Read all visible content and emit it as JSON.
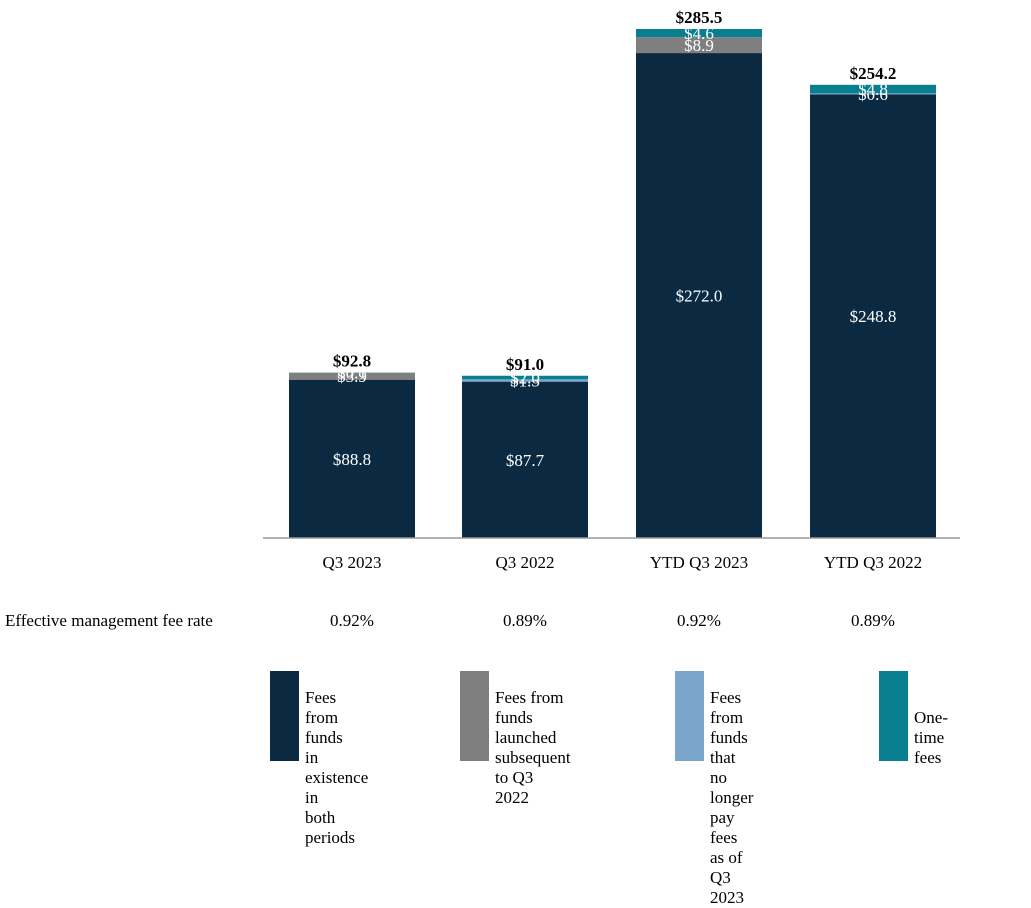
{
  "chart_data": {
    "type": "bar",
    "stacked": true,
    "categories": [
      "Q3 2023",
      "Q3 2022",
      "YTD Q3 2023",
      "YTD Q3 2022"
    ],
    "series": [
      {
        "name": "Fees from funds in existence in both periods",
        "color": "#0b2a42",
        "values": [
          88.8,
          87.7,
          272.0,
          248.8
        ],
        "labels": [
          "$88.8",
          "$87.7",
          "$272.0",
          "$248.8"
        ]
      },
      {
        "name": "Fees from funds launched subsequent to Q3 2022",
        "color": "#7f7f7f",
        "values": [
          3.9,
          0,
          8.9,
          0
        ],
        "labels": [
          "$3.9",
          "",
          "$8.9",
          ""
        ]
      },
      {
        "name": "Fees from funds that no longer pay fees as of Q3 2023",
        "color": "#7ba6cb",
        "values": [
          0,
          1.3,
          0,
          0.6
        ],
        "labels": [
          "",
          "$1.3",
          "",
          "$0.6"
        ]
      },
      {
        "name": "One-time fees",
        "color": "#097e8e",
        "values": [
          0.1,
          2.0,
          4.6,
          4.8
        ],
        "labels": [
          "$0.1",
          "$2.0",
          "$4.6",
          "$4.8"
        ]
      }
    ],
    "totals": [
      92.8,
      91.0,
      285.5,
      254.2
    ],
    "total_labels": [
      "$92.8",
      "$91.0",
      "$285.5",
      "$254.2"
    ],
    "title": "",
    "xlabel": "",
    "ylabel": "",
    "ylim": [
      0,
      285.5
    ],
    "grid": false,
    "legend_position": "bottom"
  },
  "fee_rate": {
    "label": "Effective management fee rate",
    "values": [
      "0.92%",
      "0.89%",
      "0.92%",
      "0.89%"
    ]
  },
  "legend": [
    {
      "text": "Fees from funds\nin existence in\nboth periods",
      "color": "#0b2a42"
    },
    {
      "text": "Fees from funds\nlaunched subsequent\nto Q3 2022",
      "color": "#7f7f7f"
    },
    {
      "text": "Fees from funds\nthat no longer pay\nfees as of Q3 2023",
      "color": "#7ba6cb"
    },
    {
      "text": "One-time fees",
      "color": "#097e8e"
    }
  ]
}
